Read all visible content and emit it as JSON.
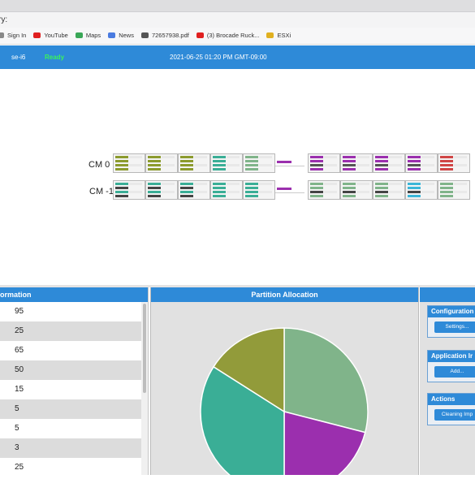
{
  "browser": {
    "url_fragment": "ry:",
    "bookmarks": [
      {
        "label": "Sign In",
        "icon": "sign-in-icon",
        "color": "#888888"
      },
      {
        "label": "YouTube",
        "icon": "youtube-icon",
        "color": "#e02020"
      },
      {
        "label": "Maps",
        "icon": "maps-icon",
        "color": "#3aa757"
      },
      {
        "label": "News",
        "icon": "news-icon",
        "color": "#4a7be0"
      },
      {
        "label": "72657938.pdf",
        "icon": "globe-icon",
        "color": "#555555"
      },
      {
        "label": "(3) Brocade Ruck...",
        "icon": "youtube-icon",
        "color": "#e02020"
      },
      {
        "label": "ESXi",
        "icon": "esxi-icon",
        "color": "#e0b020"
      }
    ]
  },
  "header": {
    "host": "se-i6",
    "status": "Ready",
    "datetime": "2021-06-25 01:20 PM GMT-09:00"
  },
  "canvas": {
    "rows": [
      {
        "label": "CM 0",
        "cells": [
          "olive",
          "olive",
          "olive",
          "teal",
          "sage",
          "purple-thin",
          "purple-dark",
          "purple-dark",
          "purple-dark",
          "purple-dark",
          "red"
        ]
      },
      {
        "label": "CM -1",
        "cells": [
          "teal-dark",
          "teal-dark",
          "teal-dark",
          "teal",
          "teal",
          "purple-thin",
          "sage-dark",
          "sage-dark",
          "sage-dark",
          "cyan",
          "sage"
        ]
      }
    ]
  },
  "left_panel": {
    "title": "formation",
    "values": [
      "95",
      "25",
      "65",
      "50",
      "15",
      "5",
      "5",
      "3",
      "25"
    ]
  },
  "mid_panel": {
    "title": "Partition Allocation"
  },
  "chart_data": {
    "type": "pie",
    "title": "Partition Allocation",
    "slices": [
      {
        "value": 29,
        "color": "#80b48a"
      },
      {
        "value": 21,
        "color": "#9b2fae"
      },
      {
        "value": 34,
        "color": "#3aae96"
      },
      {
        "value": 16,
        "color": "#929b3a"
      }
    ]
  },
  "right_panel": {
    "sections": [
      {
        "title": "Configuration",
        "button": "Settings..."
      },
      {
        "title": "Application Ir",
        "button": "Add..."
      },
      {
        "title": "Actions",
        "button": "Cleaning Imp"
      }
    ]
  },
  "colors": {
    "accent": "#2e8ad8",
    "ready": "#3af35a"
  }
}
